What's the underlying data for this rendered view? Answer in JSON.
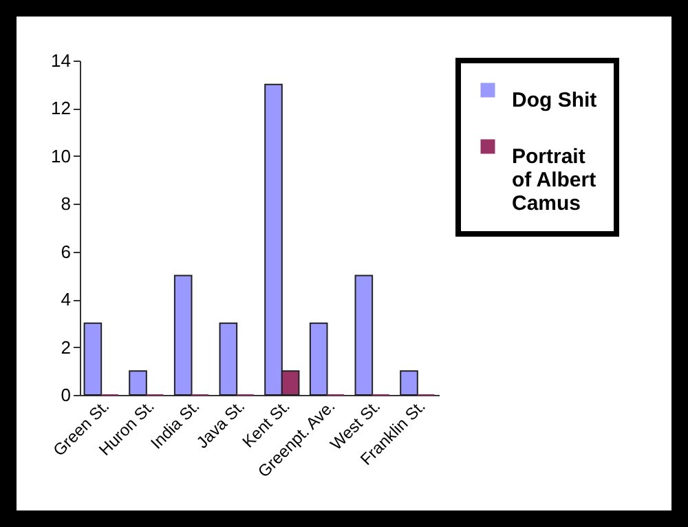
{
  "chart_data": {
    "type": "bar",
    "categories": [
      "Green St.",
      "Huron St.",
      "India St.",
      "Java St.",
      "Kent St.",
      "Greenpt. Ave.",
      "West St.",
      "Franklin St."
    ],
    "series": [
      {
        "name": "Dog Shit",
        "color": "#9999ff",
        "values": [
          3,
          1,
          5,
          3,
          13,
          3,
          5,
          1
        ]
      },
      {
        "name": "Portrait of Albert Camus",
        "color": "#993366",
        "values": [
          0,
          0,
          0,
          0,
          1,
          0,
          0,
          0
        ]
      }
    ],
    "ylim": [
      0,
      14
    ],
    "yticks": [
      0,
      2,
      4,
      6,
      8,
      10,
      12,
      14
    ],
    "grid": false,
    "legend": "right"
  }
}
